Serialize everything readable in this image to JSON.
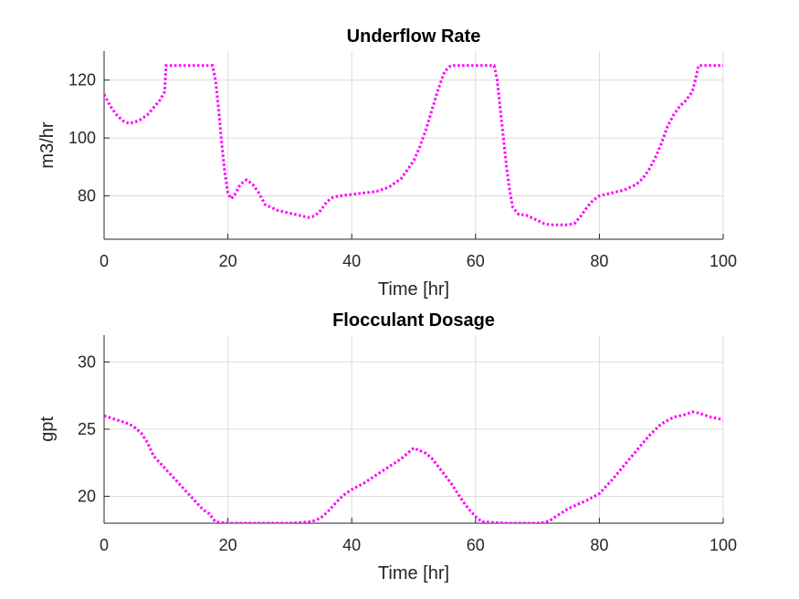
{
  "chart_data": [
    {
      "type": "line",
      "title": "Underflow Rate",
      "xlabel": "Time [hr]",
      "ylabel": "m3/hr",
      "xlim": [
        0,
        100
      ],
      "ylim": [
        65,
        130
      ],
      "xticks": [
        0,
        20,
        40,
        60,
        80,
        100
      ],
      "yticks": [
        80,
        100,
        120
      ],
      "grid": true,
      "line_style": "dotted",
      "color": "#ff00ff",
      "series": [
        {
          "x": [
            0,
            1,
            2,
            3,
            4,
            5,
            6,
            7,
            8,
            9,
            9.8,
            10,
            12,
            14,
            16,
            17.5,
            18,
            18.5,
            19,
            19.5,
            20,
            20.5,
            21,
            22,
            23,
            24,
            25,
            26,
            27,
            28,
            30,
            32,
            33,
            34,
            35,
            36,
            37,
            38,
            40,
            42,
            44,
            46,
            48,
            50,
            51,
            52,
            53,
            54,
            55,
            56,
            58,
            60,
            62,
            63,
            63.5,
            64,
            64.5,
            65,
            65.5,
            66,
            67,
            68,
            69,
            70,
            71,
            72,
            73,
            74,
            75,
            76,
            77,
            78,
            79,
            80,
            82,
            84,
            86,
            87,
            88,
            89,
            90,
            91,
            92,
            93,
            94,
            95,
            95.5,
            96,
            97,
            98,
            99,
            100
          ],
          "y": [
            115,
            111,
            108,
            106,
            105,
            105.5,
            106.5,
            108,
            110.5,
            113,
            116,
            125,
            125,
            125,
            125,
            125,
            120,
            110,
            98,
            88,
            81,
            79,
            80,
            84,
            85.5,
            84,
            81,
            77,
            76,
            75,
            74,
            73,
            72.5,
            73,
            75,
            78,
            79.5,
            80,
            80.5,
            81,
            81.5,
            83,
            86,
            92,
            97,
            103,
            110,
            117,
            123,
            125,
            125,
            125,
            125,
            125,
            120,
            110,
            100,
            90,
            82,
            76,
            73.5,
            73.5,
            72.5,
            71.5,
            70.5,
            70,
            70,
            70,
            70,
            70.5,
            73,
            76,
            78.5,
            80,
            81,
            82,
            84,
            86,
            89,
            93,
            98,
            104,
            108,
            111,
            113,
            116,
            120,
            125,
            125,
            125,
            125,
            125
          ]
        }
      ]
    },
    {
      "type": "line",
      "title": "Flocculant Dosage",
      "xlabel": "Time [hr]",
      "ylabel": "gpt",
      "xlim": [
        0,
        100
      ],
      "ylim": [
        18,
        32
      ],
      "xticks": [
        0,
        20,
        40,
        60,
        80,
        100
      ],
      "yticks": [
        20,
        25,
        30
      ],
      "grid": true,
      "line_style": "dotted",
      "color": "#ff00ff",
      "series": [
        {
          "x": [
            0,
            2,
            4,
            5,
            6,
            7,
            8,
            10,
            12,
            14,
            16,
            17,
            17.5,
            18,
            20,
            25,
            30,
            33,
            34,
            35,
            36,
            37,
            38,
            39,
            40,
            42,
            44,
            46,
            48,
            49,
            50,
            52,
            53,
            54,
            55,
            56,
            57,
            58,
            59,
            60,
            61,
            65,
            70,
            71,
            72,
            73,
            74,
            75,
            76,
            78,
            80,
            82,
            84,
            86,
            88,
            90,
            92,
            94,
            95,
            96,
            98,
            100
          ],
          "y": [
            26,
            25.7,
            25.4,
            25.1,
            24.7,
            24,
            23,
            22,
            21,
            20,
            19,
            18.7,
            18.4,
            18.1,
            18,
            18,
            18,
            18.1,
            18.2,
            18.4,
            18.8,
            19.3,
            19.8,
            20.2,
            20.5,
            21,
            21.6,
            22.2,
            22.8,
            23.2,
            23.6,
            23.2,
            22.8,
            22.2,
            21.6,
            21,
            20.3,
            19.6,
            19,
            18.5,
            18.1,
            18,
            18,
            18.05,
            18.2,
            18.5,
            18.8,
            19.1,
            19.3,
            19.7,
            20.2,
            21.2,
            22.3,
            23.4,
            24.5,
            25.4,
            25.9,
            26.1,
            26.3,
            26.2,
            25.9,
            25.7
          ]
        }
      ]
    }
  ]
}
